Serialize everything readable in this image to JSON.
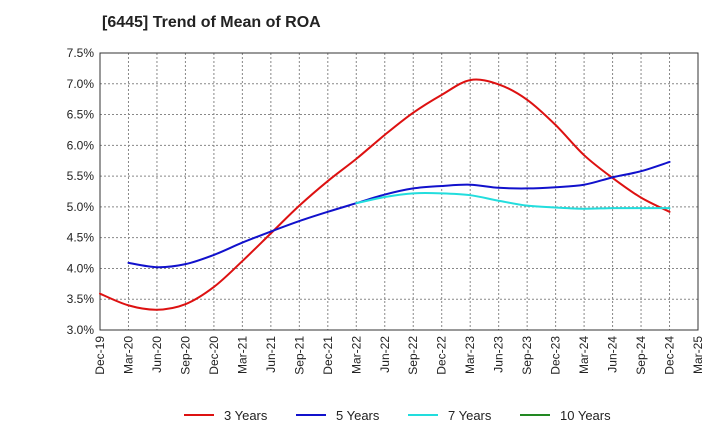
{
  "chart_data": {
    "type": "line",
    "title": "[6445]  Trend of Mean of ROA",
    "xlabel": "",
    "ylabel": "",
    "ylim": [
      3.0,
      7.5
    ],
    "y_ticks": [
      "3.0%",
      "3.5%",
      "4.0%",
      "4.5%",
      "5.0%",
      "5.5%",
      "6.0%",
      "6.5%",
      "7.0%",
      "7.5%"
    ],
    "x_ticks": [
      "Dec-19",
      "Mar-20",
      "Jun-20",
      "Sep-20",
      "Dec-20",
      "Mar-21",
      "Jun-21",
      "Sep-21",
      "Dec-21",
      "Mar-22",
      "Jun-22",
      "Sep-22",
      "Dec-22",
      "Mar-23",
      "Jun-23",
      "Sep-23",
      "Dec-23",
      "Mar-24",
      "Jun-24",
      "Sep-24",
      "Dec-24",
      "Mar-25"
    ],
    "grid": true,
    "legend_position": "bottom",
    "series": [
      {
        "name": "3 Years",
        "color": "#dd1111",
        "values": [
          3.59,
          3.4,
          3.33,
          3.42,
          3.7,
          4.12,
          4.57,
          5.02,
          5.42,
          5.78,
          6.17,
          6.53,
          6.82,
          7.06,
          6.99,
          6.74,
          6.33,
          5.84,
          5.47,
          5.15,
          4.92,
          null
        ]
      },
      {
        "name": "5 Years",
        "color": "#1111cc",
        "values": [
          null,
          4.09,
          4.02,
          4.07,
          4.22,
          4.42,
          4.6,
          4.77,
          4.92,
          5.06,
          5.2,
          5.3,
          5.34,
          5.36,
          5.31,
          5.3,
          5.32,
          5.36,
          5.48,
          5.58,
          5.73,
          null
        ]
      },
      {
        "name": "7 Years",
        "color": "#22dddd",
        "values": [
          null,
          null,
          null,
          null,
          null,
          null,
          null,
          null,
          null,
          5.06,
          5.16,
          5.22,
          5.22,
          5.19,
          5.1,
          5.02,
          4.99,
          4.97,
          4.98,
          4.98,
          4.98,
          null
        ]
      },
      {
        "name": "10 Years",
        "color": "#228822",
        "values": [
          null,
          null,
          null,
          null,
          null,
          null,
          null,
          null,
          null,
          null,
          null,
          null,
          null,
          null,
          null,
          null,
          null,
          null,
          null,
          null,
          null,
          null
        ]
      }
    ]
  }
}
